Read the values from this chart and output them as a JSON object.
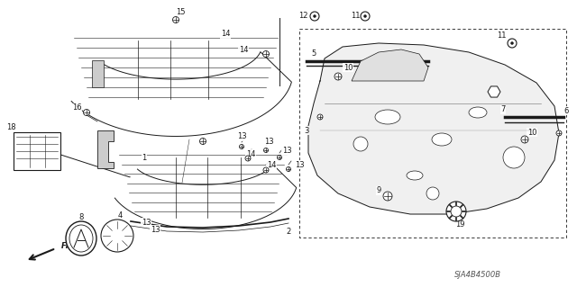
{
  "bg_color": "#ffffff",
  "diagram_id": "SJA4B4500B",
  "figsize": [
    6.4,
    3.19
  ],
  "dpi": 100,
  "line_color": "#1a1a1a",
  "label_color": "#1a1a1a",
  "diagram_id_color": "#555555",
  "label_font_size": 6.0,
  "diagram_id_font_size": 6.0
}
